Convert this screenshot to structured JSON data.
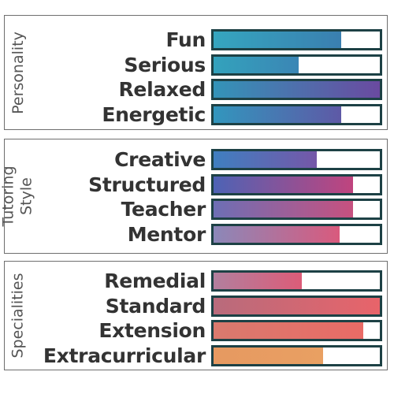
{
  "panels": [
    {
      "label_lines": [
        "Personality"
      ],
      "items": [
        {
          "label": "Fun",
          "value": 0.77,
          "color": "#35a6bf",
          "color_end": "#3a7fb0"
        },
        {
          "label": "Serious",
          "value": 0.51,
          "color": "#33a2bc",
          "color_end": "#3b86b5"
        },
        {
          "label": "Relaxed",
          "value": 1.0,
          "color": "#3394b8",
          "color_end": "#6a4aa0"
        },
        {
          "label": "Energetic",
          "value": 0.77,
          "color": "#3296bd",
          "color_end": "#5e59a6"
        }
      ]
    },
    {
      "label_lines": [
        "Tutoring",
        "Style"
      ],
      "items": [
        {
          "label": "Creative",
          "value": 0.62,
          "color": "#3f7fc0",
          "color_end": "#7557a8"
        },
        {
          "label": "Structured",
          "value": 0.84,
          "color": "#4d63b5",
          "color_end": "#c0447e"
        },
        {
          "label": "Teacher",
          "value": 0.84,
          "color": "#6d6fb5",
          "color_end": "#c7517f"
        },
        {
          "label": "Mentor",
          "value": 0.76,
          "color": "#8b88b9",
          "color_end": "#d95a7d"
        }
      ]
    },
    {
      "label_lines": [
        "Specialities"
      ],
      "items": [
        {
          "label": "Remedial",
          "value": 0.53,
          "color": "#b27f9e",
          "color_end": "#dc5c78"
        },
        {
          "label": "Standard",
          "value": 1.0,
          "color": "#b86b7c",
          "color_end": "#e8646a"
        },
        {
          "label": "Extension",
          "value": 0.9,
          "color": "#d97a6e",
          "color_end": "#e96b66"
        },
        {
          "label": "Extracurricular",
          "value": 0.66,
          "color": "#e69961",
          "color_end": "#e9a062"
        }
      ]
    }
  ]
}
